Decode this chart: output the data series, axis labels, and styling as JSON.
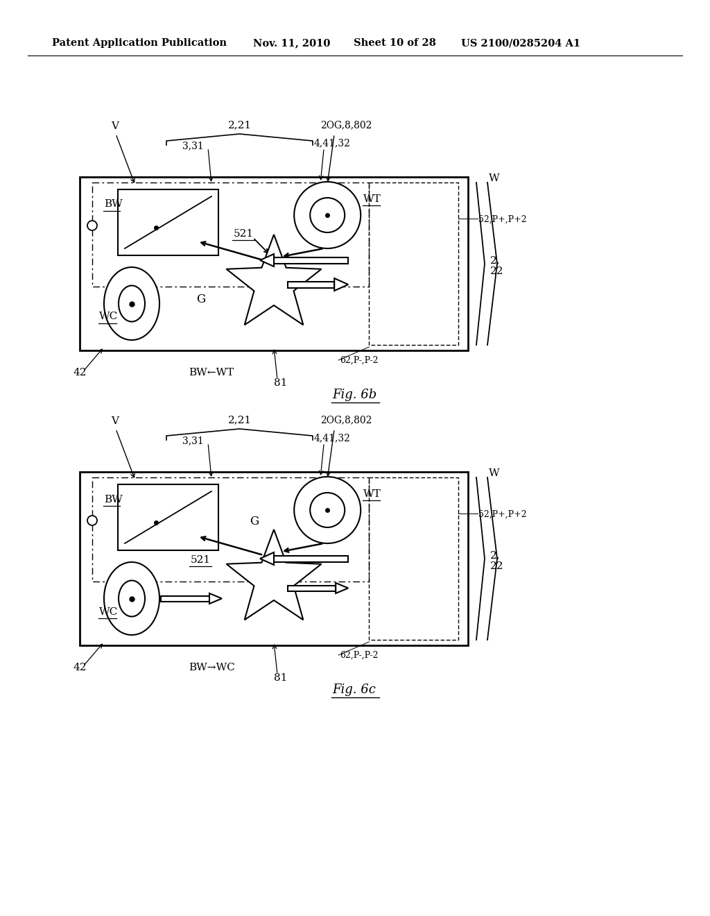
{
  "background": "#ffffff",
  "header_left": "Patent Application Publication",
  "header_date": "Nov. 11, 2010",
  "header_sheet": "Sheet 10 of 28",
  "header_patent": "US 2100/0285204 A1",
  "fig6b_label": "Fig. 6b",
  "fig6c_label": "Fig. 6c"
}
